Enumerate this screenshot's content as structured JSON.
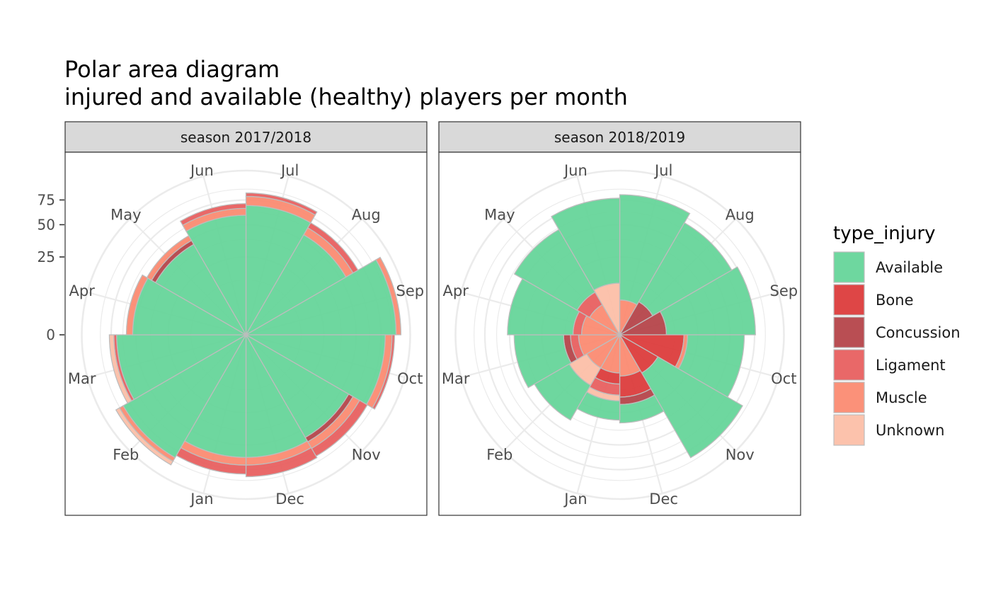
{
  "chart_data": {
    "type": "polar-area",
    "title": "Polar area diagram",
    "subtitle": "injured and available (healthy) players per month",
    "months": [
      "Jul",
      "Aug",
      "Sep",
      "Oct",
      "Nov",
      "Dec",
      "Jan",
      "Feb",
      "Mar",
      "Apr",
      "May",
      "Jun"
    ],
    "y_ticks": [
      0,
      25,
      50,
      75
    ],
    "y_scale": "sqrt",
    "ylim": [
      0,
      100
    ],
    "grid": true,
    "legend": {
      "title": "type_injury",
      "position": "right",
      "entries": [
        {
          "name": "Available",
          "color": "#66d59a"
        },
        {
          "name": "Bone",
          "color": "#dc3c3c"
        },
        {
          "name": "Concussion",
          "color": "#b5444a"
        },
        {
          "name": "Ligament",
          "color": "#e86060"
        },
        {
          "name": "Muscle",
          "color": "#fb8b72"
        },
        {
          "name": "Unknown",
          "color": "#fcbfa8"
        }
      ]
    },
    "panels": [
      {
        "strip": "season 2017/2018",
        "stacks": {
          "Jul": {
            "Available": 69,
            "Muscle": 10,
            "Ligament": 4
          },
          "Aug": {
            "Available": 55,
            "Muscle": 8,
            "Ligament": 6
          },
          "Sep": {
            "Available": 93,
            "Muscle": 6
          },
          "Oct": {
            "Available": 80,
            "Muscle": 8,
            "Ligament": 3
          },
          "Nov": {
            "Available": 58,
            "Concussion": 5,
            "Muscle": 8,
            "Ligament": 10
          },
          "Dec": {
            "Available": 62,
            "Muscle": 8,
            "Ligament": 13
          },
          "Jan": {
            "Available": 62,
            "Muscle": 8,
            "Ligament": 10
          },
          "Feb": {
            "Available": 83,
            "Muscle": 5,
            "Unknown": 5
          },
          "Mar": {
            "Available": 69,
            "Ligament": 3,
            "Unknown": 5
          },
          "Apr": {
            "Available": 53,
            "Muscle": 6
          },
          "May": {
            "Available": 45,
            "Concussion": 4,
            "Muscle": 5
          },
          "Jun": {
            "Available": 59,
            "Muscle": 7,
            "Ligament": 5
          }
        }
      },
      {
        "strip": "season 2018/2019",
        "stacks": {
          "Jul": {
            "Muscle": 5,
            "Available": 76
          },
          "Aug": {
            "Concussion": 6,
            "Available": 63
          },
          "Sep": {
            "Concussion": 9,
            "Available": 67
          },
          "Oct": {
            "Bone": 17,
            "Muscle": 2,
            "Available": 45
          },
          "Nov": {
            "Bone": 8,
            "Available": 75
          },
          "Dec": {
            "Muscle": 7,
            "Bone": 9,
            "Concussion": 4,
            "Available": 12
          },
          "Jan": {
            "Muscle": 6,
            "Bone": 4,
            "Ligament": 5,
            "Unknown": 3,
            "Available": 12
          },
          "Feb": {
            "Muscle": 6,
            "Unknown": 8,
            "Available": 26
          },
          "Mar": {
            "Muscle": 7,
            "Ligament": 3,
            "Concussion": 3,
            "Available": 33
          },
          "Apr": {
            "Muscle": 6,
            "Ligament": 3,
            "Available": 43
          },
          "May": {
            "Muscle": 5,
            "Ligament": 5,
            "Available": 51
          },
          "Jun": {
            "Unknown": 11,
            "Available": 66
          }
        }
      }
    ]
  }
}
